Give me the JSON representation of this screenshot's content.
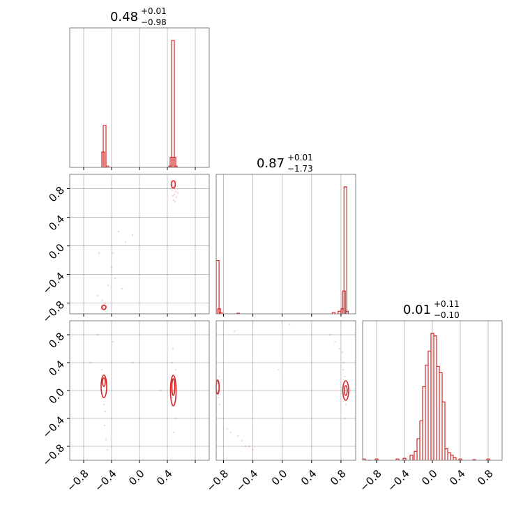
{
  "chart_data": [
    {
      "type": "histogram",
      "panel": "diag-0",
      "title": {
        "value": "0.48",
        "upper": "+0.01",
        "lower": "−0.98"
      },
      "xlim": [
        -1,
        1
      ],
      "bins": [
        {
          "x": -0.52,
          "h": 0.12
        },
        {
          "x": -0.5,
          "h": 0.33
        },
        {
          "x": -0.48,
          "h": 0.0
        },
        {
          "x": -0.46,
          "h": 0.01
        },
        {
          "x": 0.44,
          "h": 0.01
        },
        {
          "x": 0.46,
          "h": 0.08
        },
        {
          "x": 0.48,
          "h": 1.0
        },
        {
          "x": 0.5,
          "h": 0.08
        },
        {
          "x": 0.52,
          "h": 0.01
        }
      ],
      "color": "#d62728"
    },
    {
      "type": "scatter",
      "panel": "row1-col0",
      "xlim": [
        -1,
        1
      ],
      "ylim": [
        -0.95,
        1.0
      ],
      "yticks": [
        "−0.8",
        "−0.4",
        "0.0",
        "0.4",
        "0.8"
      ],
      "points": [
        [
          0.48,
          0.88
        ],
        [
          0.5,
          0.86
        ],
        [
          0.49,
          0.82
        ],
        [
          0.51,
          0.8
        ],
        [
          0.47,
          0.85
        ],
        [
          0.52,
          0.76
        ],
        [
          0.5,
          0.72
        ],
        [
          0.48,
          0.7
        ],
        [
          0.53,
          0.68
        ],
        [
          0.49,
          0.64
        ],
        [
          0.51,
          0.62
        ],
        [
          0.55,
          0.74
        ],
        [
          0.47,
          0.78
        ],
        [
          0.52,
          0.9
        ],
        [
          -0.52,
          -0.86
        ],
        [
          -0.5,
          -0.88
        ],
        [
          -0.54,
          -0.84
        ],
        [
          -0.48,
          -0.86
        ],
        [
          -0.51,
          -0.82
        ],
        [
          -0.55,
          -0.88
        ],
        [
          -0.49,
          -0.8
        ],
        [
          -0.53,
          -0.76
        ],
        [
          -0.47,
          -0.84
        ],
        [
          -0.3,
          0.2
        ],
        [
          -0.2,
          0.05
        ],
        [
          -0.45,
          -0.55
        ],
        [
          -0.4,
          -0.3
        ],
        [
          -0.35,
          -0.45
        ],
        [
          -0.6,
          -0.7
        ],
        [
          -0.38,
          -0.1
        ],
        [
          -0.1,
          0.15
        ],
        [
          -0.58,
          -0.1
        ],
        [
          -0.25,
          -0.6
        ]
      ],
      "contours": [
        {
          "cx": 0.485,
          "cy": 0.86,
          "rx": 0.03,
          "ry": 0.05
        },
        {
          "cx": -0.51,
          "cy": -0.86,
          "rx": 0.03,
          "ry": 0.03
        }
      ],
      "color": "#d62728"
    },
    {
      "type": "histogram",
      "panel": "diag-1",
      "title": {
        "value": "0.87",
        "upper": "+0.01",
        "lower": "−1.73"
      },
      "xlim": [
        -0.9,
        1.0
      ],
      "bins": [
        {
          "x": -0.88,
          "h": 0.42
        },
        {
          "x": -0.86,
          "h": 0.04
        },
        {
          "x": -0.84,
          "h": 0.01
        },
        {
          "x": -0.6,
          "h": 0.005
        },
        {
          "x": 0.7,
          "h": 0.01
        },
        {
          "x": 0.78,
          "h": 0.02
        },
        {
          "x": 0.82,
          "h": 0.04
        },
        {
          "x": 0.84,
          "h": 0.18
        },
        {
          "x": 0.86,
          "h": 1.0
        },
        {
          "x": 0.88,
          "h": 0.02
        }
      ],
      "color": "#d62728"
    },
    {
      "type": "scatter",
      "panel": "row2-col0",
      "xlim": [
        -1,
        1
      ],
      "ylim": [
        -1.0,
        1.0
      ],
      "yticks": [
        "−0.8",
        "−0.4",
        "0.0",
        "0.4",
        "0.8"
      ],
      "xticks": [
        "−0.8",
        "−0.4",
        "0.0",
        "0.4"
      ],
      "points": [
        [
          -0.52,
          0.1
        ],
        [
          -0.5,
          0.2
        ],
        [
          -0.53,
          -0.1
        ],
        [
          -0.51,
          -0.2
        ],
        [
          -0.54,
          0.3
        ],
        [
          -0.49,
          -0.3
        ],
        [
          -0.5,
          -0.5
        ],
        [
          -0.48,
          -0.7
        ],
        [
          -0.46,
          -0.85
        ],
        [
          -0.55,
          0.0
        ],
        [
          0.48,
          0.0
        ],
        [
          0.49,
          0.2
        ],
        [
          0.5,
          -0.2
        ],
        [
          0.47,
          0.4
        ],
        [
          0.51,
          -0.4
        ],
        [
          0.48,
          0.6
        ],
        [
          0.49,
          -0.6
        ],
        [
          0.5,
          0.1
        ],
        [
          0.47,
          -0.1
        ],
        [
          0.52,
          0.3
        ],
        [
          -0.38,
          0.7
        ],
        [
          -0.6,
          0.8
        ],
        [
          -0.7,
          0.4
        ],
        [
          -0.1,
          0.4
        ],
        [
          0.3,
          0.0
        ]
      ],
      "contours": [
        {
          "cx": -0.51,
          "cy": 0.06,
          "rx": 0.04,
          "ry": 0.16
        },
        {
          "cx": -0.51,
          "cy": 0.12,
          "rx": 0.02,
          "ry": 0.06
        },
        {
          "cx": 0.485,
          "cy": 0.0,
          "rx": 0.04,
          "ry": 0.22
        },
        {
          "cx": 0.485,
          "cy": 0.05,
          "rx": 0.02,
          "ry": 0.12
        }
      ],
      "color": "#d62728"
    },
    {
      "type": "scatter",
      "panel": "row2-col1",
      "xlim": [
        -0.9,
        1.0
      ],
      "ylim": [
        -1.0,
        1.0
      ],
      "xticks": [
        "−0.8",
        "−0.4",
        "0.0",
        "0.4",
        "0.8"
      ],
      "points": [
        [
          -0.88,
          0.1
        ],
        [
          -0.87,
          -0.1
        ],
        [
          -0.86,
          0.2
        ],
        [
          -0.85,
          -0.2
        ],
        [
          -0.8,
          -0.4
        ],
        [
          -0.75,
          -0.55
        ],
        [
          -0.7,
          -0.6
        ],
        [
          -0.6,
          -0.65
        ],
        [
          -0.55,
          -0.72
        ],
        [
          -0.5,
          -0.8
        ],
        [
          -0.4,
          -0.85
        ],
        [
          -0.45,
          -0.8
        ],
        [
          0.86,
          0.0
        ],
        [
          0.85,
          0.2
        ],
        [
          0.87,
          -0.2
        ],
        [
          0.84,
          0.4
        ],
        [
          0.82,
          0.55
        ],
        [
          0.78,
          0.6
        ],
        [
          0.72,
          0.7
        ],
        [
          0.65,
          0.8
        ],
        [
          0.86,
          -0.4
        ],
        [
          0.83,
          0.3
        ],
        [
          -0.65,
          0.85
        ],
        [
          0.1,
          0.95
        ],
        [
          -0.05,
          0.3
        ]
      ],
      "contours": [
        {
          "cx": -0.88,
          "cy": 0.05,
          "rx": 0.02,
          "ry": 0.1
        },
        {
          "cx": 0.865,
          "cy": 0.0,
          "rx": 0.04,
          "ry": 0.14
        },
        {
          "cx": 0.865,
          "cy": 0.0,
          "rx": 0.02,
          "ry": 0.07
        }
      ],
      "color": "#d62728"
    },
    {
      "type": "histogram",
      "panel": "diag-2",
      "title": {
        "value": "0.01",
        "upper": "+0.11",
        "lower": "−0.10"
      },
      "xlim": [
        -1,
        1
      ],
      "xticks": [
        "−0.8",
        "−0.4",
        "0.0",
        "0.4",
        "0.8"
      ],
      "bins": [
        {
          "x": -0.98,
          "h": 0.01
        },
        {
          "x": -0.9,
          "h": 0.0
        },
        {
          "x": -0.8,
          "h": 0.01
        },
        {
          "x": -0.5,
          "h": 0.01
        },
        {
          "x": -0.4,
          "h": 0.015
        },
        {
          "x": -0.3,
          "h": 0.04
        },
        {
          "x": -0.24,
          "h": 0.07
        },
        {
          "x": -0.2,
          "h": 0.17
        },
        {
          "x": -0.16,
          "h": 0.31
        },
        {
          "x": -0.12,
          "h": 0.58
        },
        {
          "x": -0.08,
          "h": 0.75
        },
        {
          "x": -0.04,
          "h": 0.86
        },
        {
          "x": 0.0,
          "h": 1.0
        },
        {
          "x": 0.04,
          "h": 0.98
        },
        {
          "x": 0.08,
          "h": 0.74
        },
        {
          "x": 0.12,
          "h": 0.69
        },
        {
          "x": 0.16,
          "h": 0.46
        },
        {
          "x": 0.2,
          "h": 0.09
        },
        {
          "x": 0.24,
          "h": 0.06
        },
        {
          "x": 0.28,
          "h": 0.04
        },
        {
          "x": 0.32,
          "h": 0.02
        },
        {
          "x": 0.4,
          "h": 0.01
        },
        {
          "x": 0.6,
          "h": 0.005
        },
        {
          "x": 0.8,
          "h": 0.01
        }
      ],
      "color": "#d62728"
    }
  ]
}
